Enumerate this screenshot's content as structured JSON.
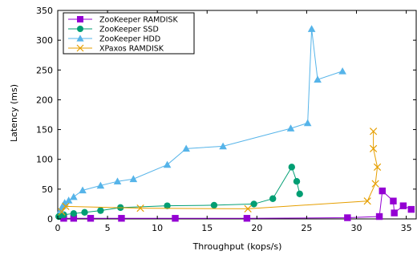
{
  "chart_data": {
    "type": "line",
    "xlabel": "Throughput (kops/s)",
    "ylabel": "Latency (ms)",
    "xlim": [
      0,
      36
    ],
    "ylim": [
      0,
      350
    ],
    "xticks": [
      0,
      5,
      10,
      15,
      20,
      25,
      30,
      35
    ],
    "yticks": [
      0,
      50,
      100,
      150,
      200,
      250,
      300,
      350
    ],
    "grid": false,
    "legend_position": "top-left",
    "series": [
      {
        "name": "ZooKeeper RAMDISK",
        "color": "#9400d3",
        "marker": "square",
        "points": [
          [
            0.6,
            1
          ],
          [
            1.6,
            1
          ],
          [
            3.3,
            1
          ],
          [
            6.4,
            1
          ],
          [
            11.8,
            1
          ],
          [
            19,
            1
          ],
          [
            29.1,
            2
          ],
          [
            32.3,
            4
          ],
          [
            32.6,
            47
          ],
          [
            33.7,
            30
          ],
          [
            33.8,
            10
          ],
          [
            34.7,
            22
          ],
          [
            35.5,
            16
          ]
        ]
      },
      {
        "name": "ZooKeeper SSD",
        "color": "#009e73",
        "marker": "circle",
        "points": [
          [
            0.1,
            4
          ],
          [
            0.6,
            7
          ],
          [
            1.6,
            9
          ],
          [
            2.7,
            11
          ],
          [
            4.3,
            14
          ],
          [
            6.3,
            19
          ],
          [
            11,
            22
          ],
          [
            15.7,
            23
          ],
          [
            19.7,
            25
          ],
          [
            21.6,
            34
          ],
          [
            23.5,
            87
          ],
          [
            24,
            63
          ],
          [
            24.3,
            42
          ]
        ]
      },
      {
        "name": "ZooKeeper HDD",
        "color": "#56b4e9",
        "marker": "triangle",
        "points": [
          [
            0.3,
            15
          ],
          [
            0.5,
            22
          ],
          [
            0.7,
            27
          ],
          [
            1.1,
            31
          ],
          [
            1.6,
            37
          ],
          [
            2.5,
            48
          ],
          [
            4.3,
            56
          ],
          [
            6,
            63
          ],
          [
            7.6,
            67
          ],
          [
            11,
            91
          ],
          [
            12.9,
            118
          ],
          [
            16.6,
            122
          ],
          [
            23.4,
            152
          ],
          [
            25.1,
            161
          ],
          [
            25.5,
            319
          ],
          [
            26.1,
            234
          ],
          [
            28.6,
            248
          ]
        ]
      },
      {
        "name": "XPaxos RAMDISK",
        "color": "#e69f00",
        "marker": "x",
        "points": [
          [
            0.4,
            12
          ],
          [
            0.8,
            21
          ],
          [
            8.3,
            18
          ],
          [
            19.1,
            17
          ],
          [
            31.1,
            30
          ],
          [
            31.9,
            59
          ],
          [
            32.1,
            87
          ],
          [
            31.7,
            118
          ],
          [
            31.7,
            147
          ]
        ]
      }
    ]
  }
}
